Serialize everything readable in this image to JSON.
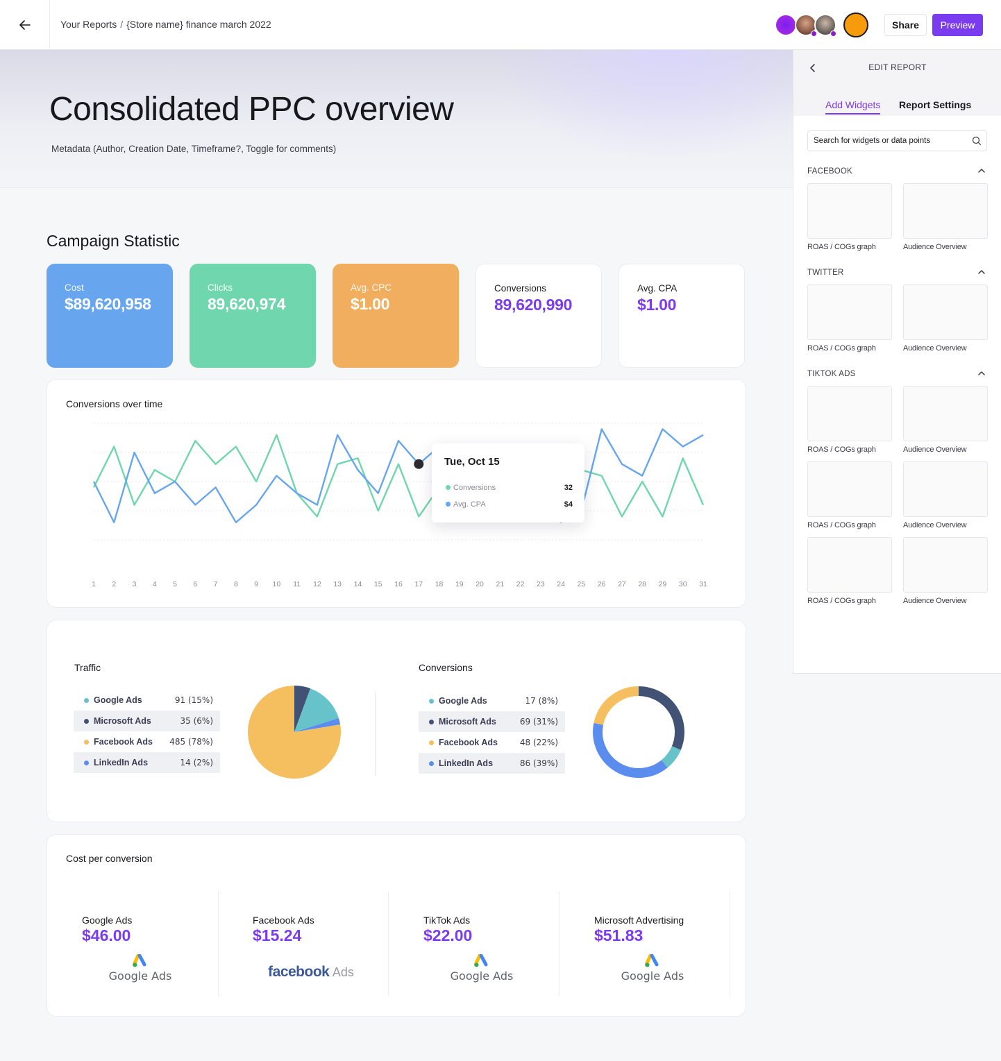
{
  "breadcrumb": {
    "root": "Your Reports",
    "separator": "/",
    "current": "{Store name} finance march 2022"
  },
  "header": {
    "share_label": "Share",
    "preview_label": "Preview"
  },
  "hero": {
    "title": "Consolidated PPC overview",
    "metadata": "Metadata (Author, Creation Date, Timeframe?,  Toggle for comments)"
  },
  "section_title": "Campaign Statistic",
  "stats": [
    {
      "label": "Cost",
      "value": "$89,620,958",
      "color": "#67a6ee"
    },
    {
      "label": "Clicks",
      "value": "89,620,974",
      "color": "#6fd6ad"
    },
    {
      "label": "Avg. CPC",
      "value": "$1.00",
      "color": "#f2ae5f"
    },
    {
      "label": "Conversions",
      "value": "89,620,990"
    },
    {
      "label": "Avg. CPA",
      "value": "$1.00"
    }
  ],
  "colors": {
    "accent": "#7b3cf0",
    "green": "#6fd6ad",
    "blue": "#67a6ee",
    "orange": "#f2ae5f",
    "navy": "#415274",
    "teal": "#66c3c9",
    "yellow": "#f5bf5f",
    "royal": "#5b8def"
  },
  "chart_data": [
    {
      "type": "line",
      "title": "Conversions over time",
      "x": [
        1,
        2,
        3,
        4,
        5,
        6,
        7,
        8,
        9,
        10,
        11,
        12,
        13,
        14,
        15,
        16,
        17,
        18,
        19,
        20,
        21,
        22,
        23,
        24,
        25,
        26,
        27,
        28,
        29,
        30,
        31
      ],
      "ylim": [
        0,
        10
      ],
      "grid": true,
      "series": [
        {
          "name": "Conversions",
          "color": "#6fd6ad",
          "values": [
            4.5,
            8,
            3,
            6,
            5,
            8.5,
            6.5,
            8,
            5,
            9,
            4,
            2,
            6.5,
            7,
            2.5,
            6.5,
            2,
            4.5,
            3,
            8,
            3,
            2.5,
            2.5,
            1.5,
            6,
            5.5,
            2,
            5,
            2,
            7,
            3
          ]
        },
        {
          "name": "Avg. CPA",
          "color": "#67a6ee",
          "values": [
            5,
            1.5,
            7.5,
            4,
            5,
            3,
            4.5,
            1.5,
            3,
            5.5,
            4,
            3,
            9,
            6,
            4,
            8.5,
            6.5,
            8,
            7.5,
            8,
            3,
            4.5,
            3,
            1.5,
            2.5,
            9.5,
            6.5,
            5.5,
            9.5,
            8,
            9
          ]
        }
      ],
      "tooltip": {
        "date": "Tue, Oct 15",
        "items": [
          {
            "name": "Conversions",
            "value": "32"
          },
          {
            "name": "Avg. CPA",
            "value": "$4"
          }
        ]
      }
    },
    {
      "type": "pie",
      "title": "Traffic",
      "legend": [
        {
          "name": "Google Ads",
          "text": "91  (15%)",
          "value": 91,
          "color": "#66c3c9"
        },
        {
          "name": "Microsoft Ads",
          "text": "35  (6%)",
          "value": 35,
          "color": "#415274"
        },
        {
          "name": "Facebook Ads",
          "text": "485  (78%)",
          "value": 485,
          "color": "#f5bf5f"
        },
        {
          "name": "LinkedIn Ads",
          "text": "14  (2%)",
          "value": 14,
          "color": "#5b8def"
        }
      ]
    },
    {
      "type": "pie",
      "variant": "donut",
      "title": "Conversions",
      "legend": [
        {
          "name": "Google Ads",
          "text": "17  (8%)",
          "value": 17,
          "color": "#66c3c9"
        },
        {
          "name": "Microsoft Ads",
          "text": "69  (31%)",
          "value": 69,
          "color": "#415274"
        },
        {
          "name": "Facebook Ads",
          "text": "48  (22%)",
          "value": 48,
          "color": "#f5bf5f"
        },
        {
          "name": "LinkedIn Ads",
          "text": "86  (39%)",
          "value": 86,
          "color": "#5b8def"
        }
      ]
    }
  ],
  "cost_per_conversion": {
    "title": "Cost per conversion",
    "items": [
      {
        "name": "Google Ads",
        "value": "$46.00",
        "logo": "Google Ads"
      },
      {
        "name": "Facebook Ads",
        "value": "$15.24",
        "logo_brand": "facebook",
        "logo_suffix": "Ads"
      },
      {
        "name": "TikTok Ads",
        "value": "$22.00",
        "logo": "Google Ads"
      },
      {
        "name": "Microsoft Advertising",
        "value": "$51.83",
        "logo": "Google Ads"
      }
    ]
  },
  "panel": {
    "title": "EDIT REPORT",
    "tabs": [
      "Add Widgets",
      "Report Settings"
    ],
    "search_placeholder": "Search for widgets or data points",
    "groups": [
      {
        "name": "FACEBOOK",
        "widgets": [
          "ROAS / COGs graph",
          "Audience Overview"
        ]
      },
      {
        "name": "TWITTER",
        "widgets": [
          "ROAS / COGs graph",
          "Audience Overview"
        ]
      },
      {
        "name": "TIKTOK ADS",
        "widgets": [
          "ROAS / COGs graph",
          "Audience Overview",
          "ROAS / COGs graph",
          "Audience Overview",
          "ROAS / COGs graph",
          "Audience Overview"
        ]
      }
    ]
  }
}
